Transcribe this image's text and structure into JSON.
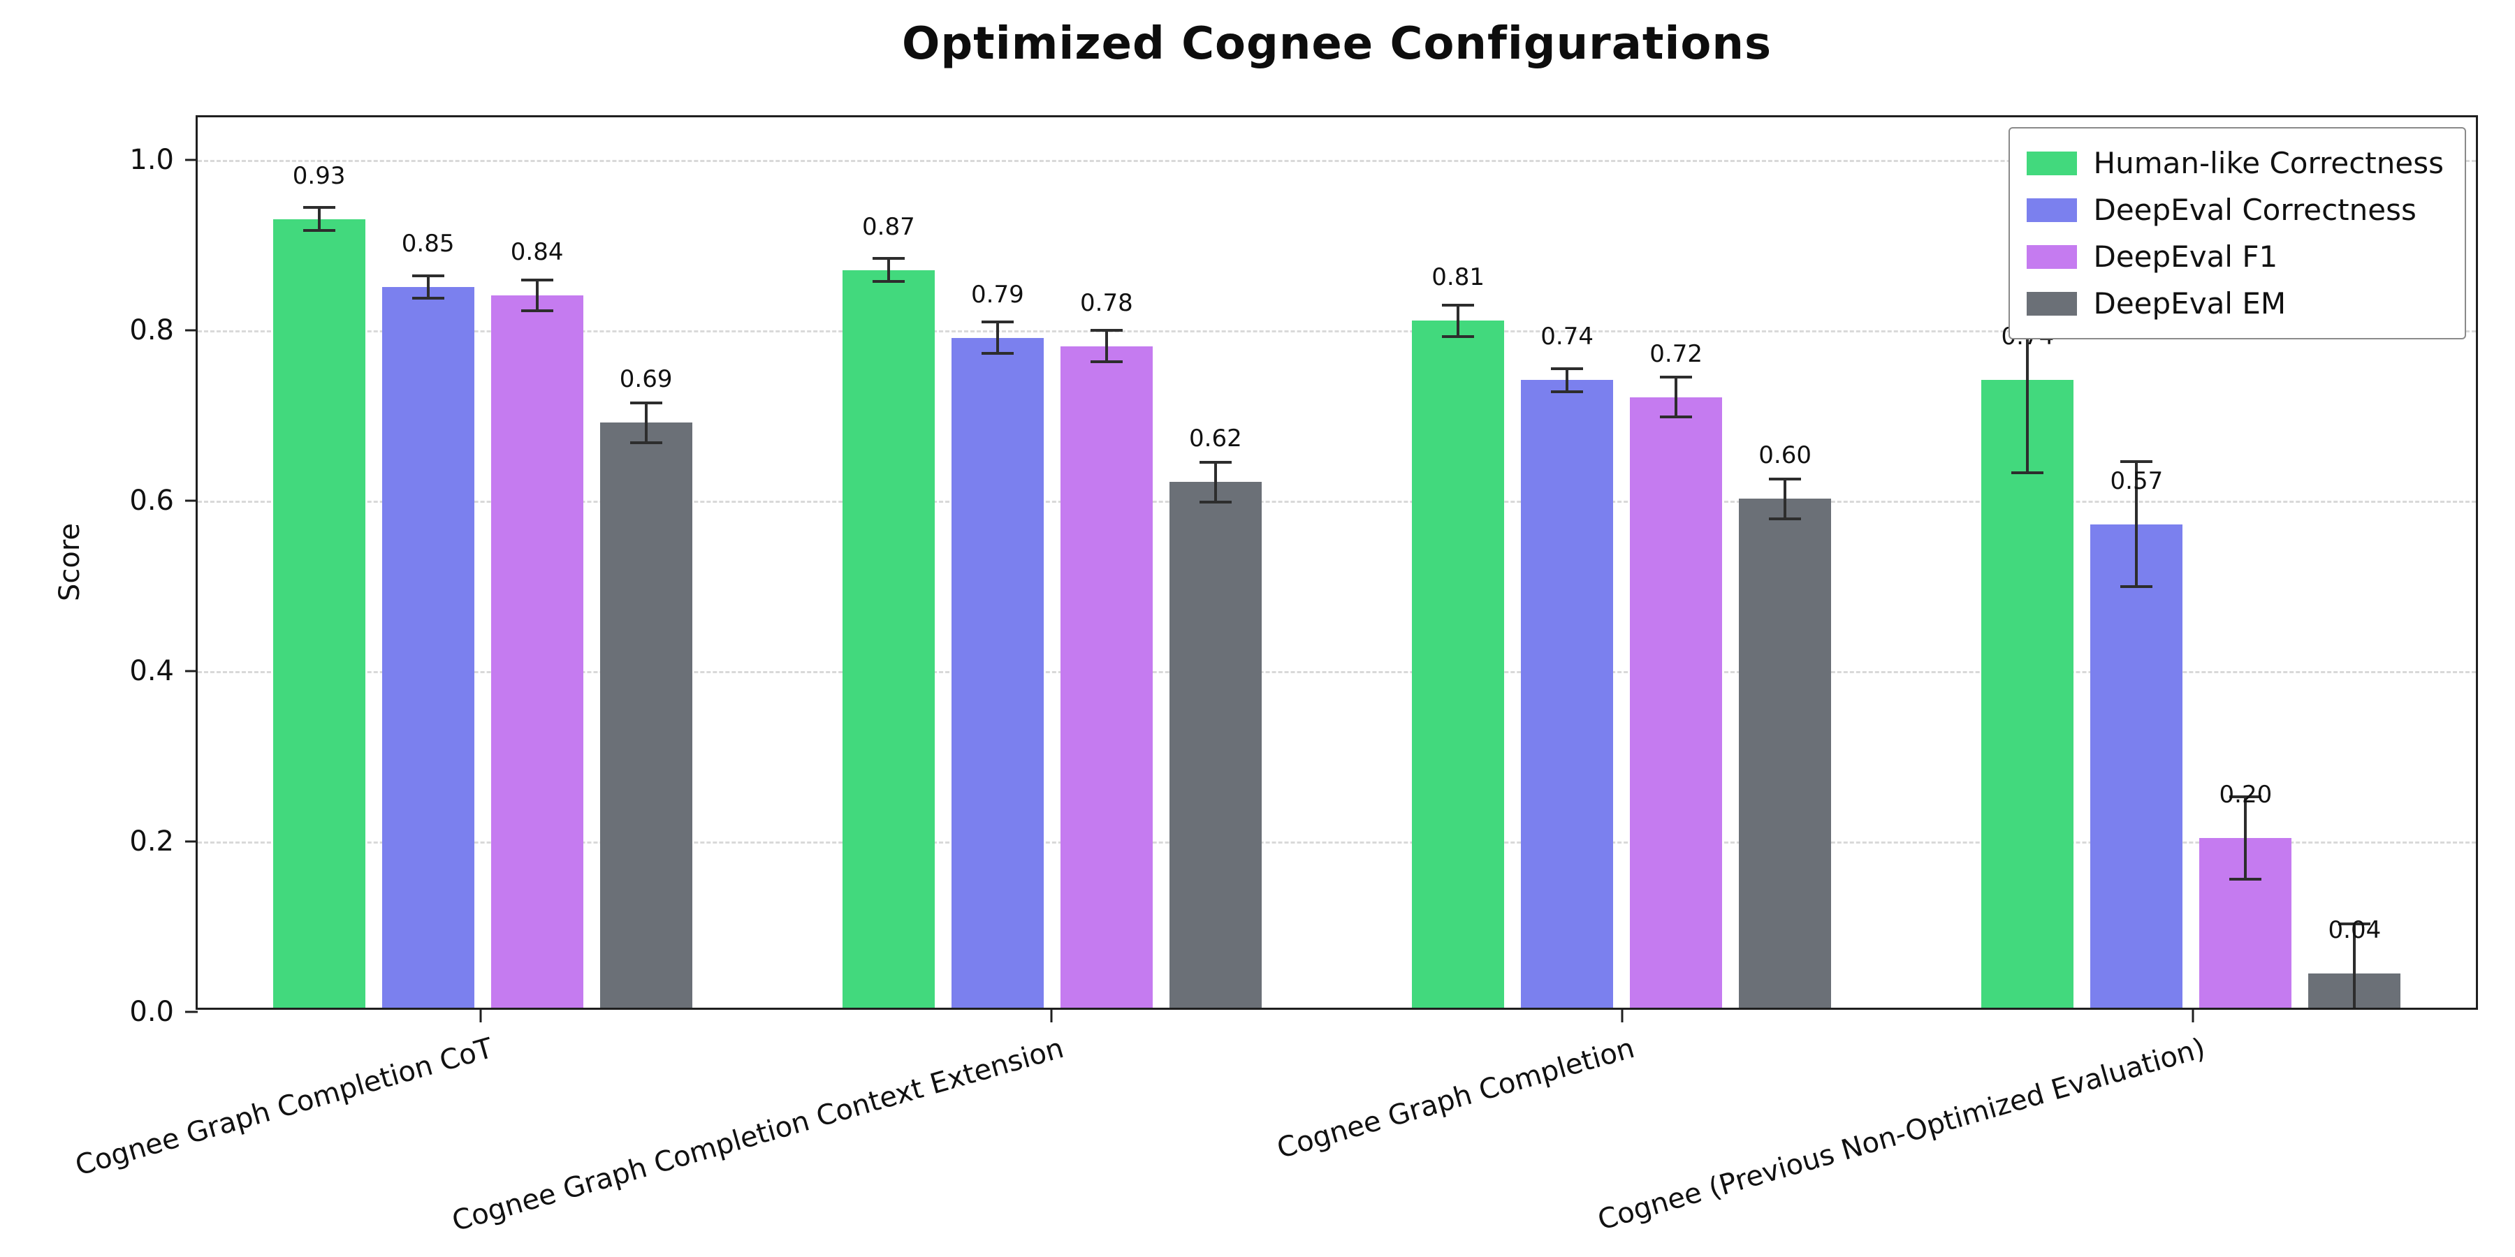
{
  "chart_data": {
    "type": "bar",
    "title": "Optimized Cognee Configurations",
    "xlabel": "",
    "ylabel": "Score",
    "ylim": [
      0,
      1.05
    ],
    "yticks": [
      0.0,
      0.2,
      0.4,
      0.6,
      0.8,
      1.0
    ],
    "grid": "horizontal-dashed",
    "legend_position": "upper-right",
    "categories": [
      "Cognee Graph Completion CoT",
      "Cognee Graph Completion Context Extension",
      "Cognee Graph Completion",
      "Cognee (Previous Non-Optimized Evaluation)"
    ],
    "series": [
      {
        "name": "Human-like Correctness",
        "color": "#42d97d",
        "values": [
          0.93,
          0.87,
          0.81,
          0.74
        ],
        "errors": [
          0.015,
          0.015,
          0.02,
          0.11
        ]
      },
      {
        "name": "DeepEval Correctness",
        "color": "#7b80ee",
        "values": [
          0.85,
          0.79,
          0.74,
          0.57
        ],
        "errors": [
          0.015,
          0.02,
          0.015,
          0.075
        ]
      },
      {
        "name": "DeepEval F1",
        "color": "#c57bf0",
        "values": [
          0.84,
          0.78,
          0.72,
          0.2
        ],
        "errors": [
          0.02,
          0.02,
          0.025,
          0.05
        ]
      },
      {
        "name": "DeepEval EM",
        "color": "#6b7077",
        "values": [
          0.69,
          0.62,
          0.6,
          0.04
        ],
        "errors": [
          0.025,
          0.025,
          0.025,
          0.06
        ]
      }
    ]
  }
}
